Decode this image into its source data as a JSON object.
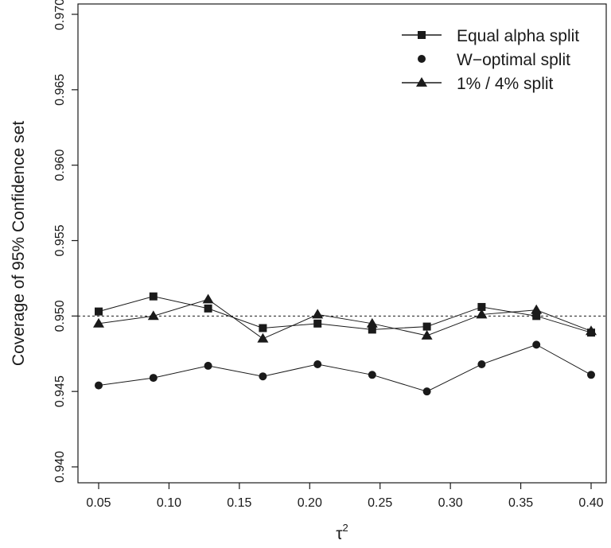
{
  "chart_data": {
    "type": "line",
    "title": "",
    "xlabel": "τ",
    "xlabel_superscript": "2",
    "ylabel": "Coverage of 95% Confidence set",
    "xlim": [
      0.05,
      0.4
    ],
    "ylim": [
      0.94,
      0.97
    ],
    "x_ticks": [
      "0.05",
      "0.10",
      "0.15",
      "0.20",
      "0.25",
      "0.30",
      "0.35",
      "0.40"
    ],
    "y_ticks": [
      "0.940",
      "0.945",
      "0.950",
      "0.955",
      "0.960",
      "0.965",
      "0.970"
    ],
    "reference_line": 0.95,
    "grid": false,
    "legend_position": "top-right",
    "x": [
      0.05,
      0.0889,
      0.1278,
      0.1667,
      0.2056,
      0.2444,
      0.2833,
      0.3222,
      0.3611,
      0.4
    ],
    "series": [
      {
        "name": "Equal alpha split",
        "marker": "square",
        "values": [
          0.9503,
          0.9513,
          0.9505,
          0.9492,
          0.9495,
          0.9491,
          0.9493,
          0.9506,
          0.95,
          0.9489
        ]
      },
      {
        "name": "W−optimal split",
        "marker": "circle",
        "values": [
          0.9454,
          0.9459,
          0.9467,
          0.946,
          0.9468,
          0.9461,
          0.945,
          0.9468,
          0.9481,
          0.9461
        ]
      },
      {
        "name": "1% / 4% split",
        "marker": "triangle",
        "values": [
          0.9495,
          0.95,
          0.9511,
          0.9485,
          0.9501,
          0.9495,
          0.9487,
          0.9501,
          0.9504,
          0.949
        ]
      }
    ]
  }
}
